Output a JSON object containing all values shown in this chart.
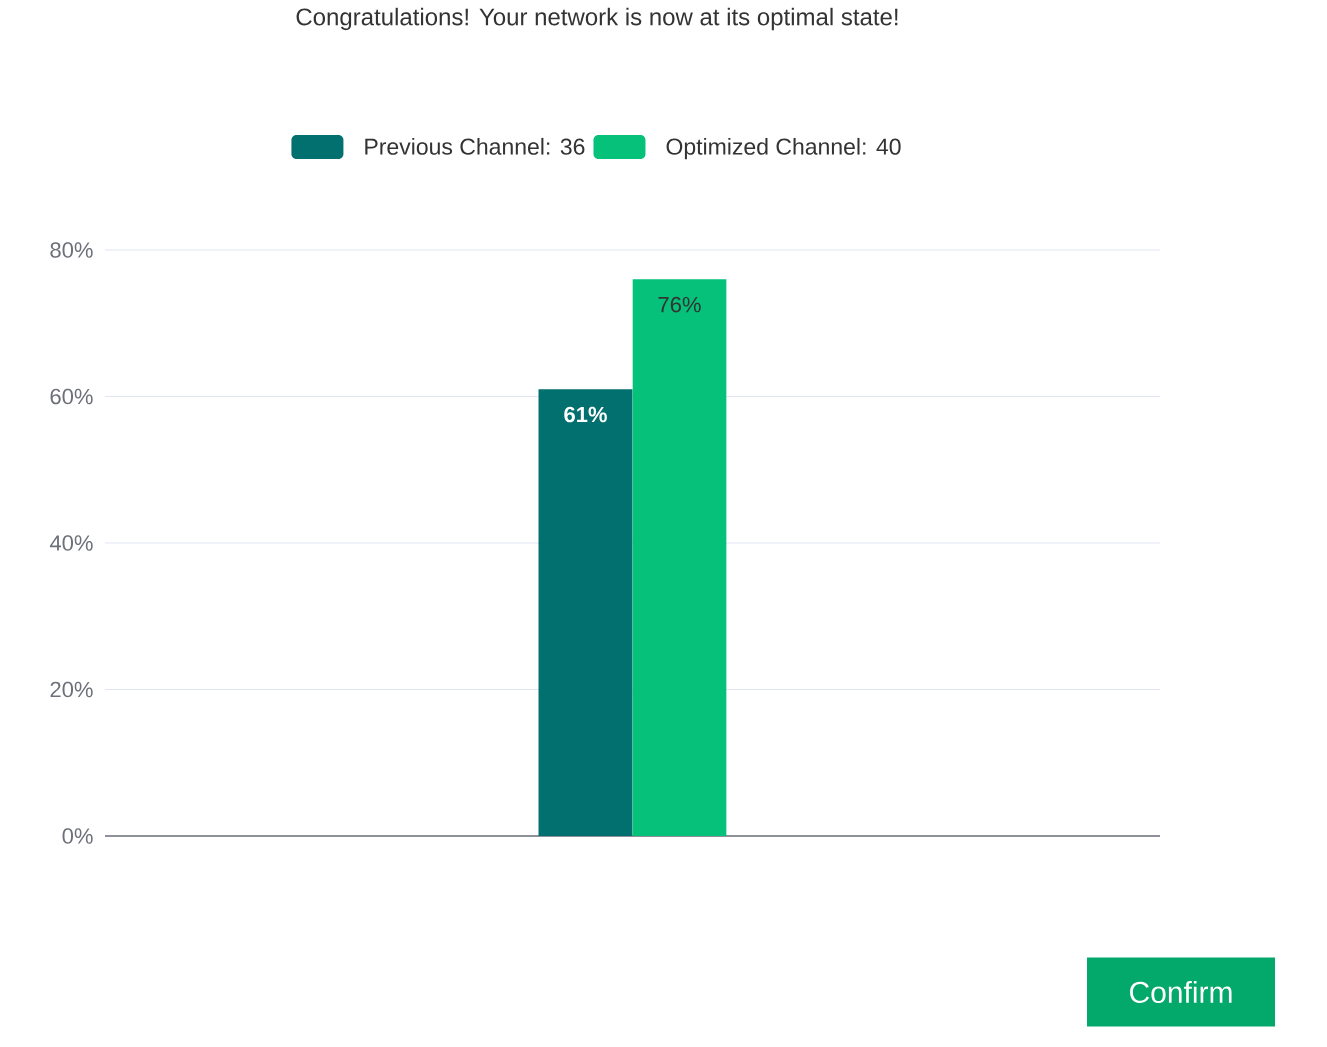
{
  "chart_data": {
    "type": "bar",
    "title": "Congratulations! Your network is now at its optimal state!",
    "categories": [
      null
    ],
    "series": [
      {
        "name": "Previous Channel: 36",
        "color": "#02706f",
        "values": [
          61
        ],
        "value_labels": [
          "61%"
        ]
      },
      {
        "name": "Optimized Channel: 40",
        "color": "#05c17a",
        "values": [
          76
        ],
        "value_labels": [
          "76%"
        ]
      }
    ],
    "ylim": [
      0,
      80
    ],
    "yticks": [
      {
        "value": 0,
        "label": "0%"
      },
      {
        "value": 20,
        "label": "20%"
      },
      {
        "value": 40,
        "label": "40%"
      },
      {
        "value": 60,
        "label": "60%"
      },
      {
        "value": 80,
        "label": "80%"
      }
    ],
    "grid": "y",
    "legend": "top",
    "annotations": [
      "Confirm"
    ]
  }
}
